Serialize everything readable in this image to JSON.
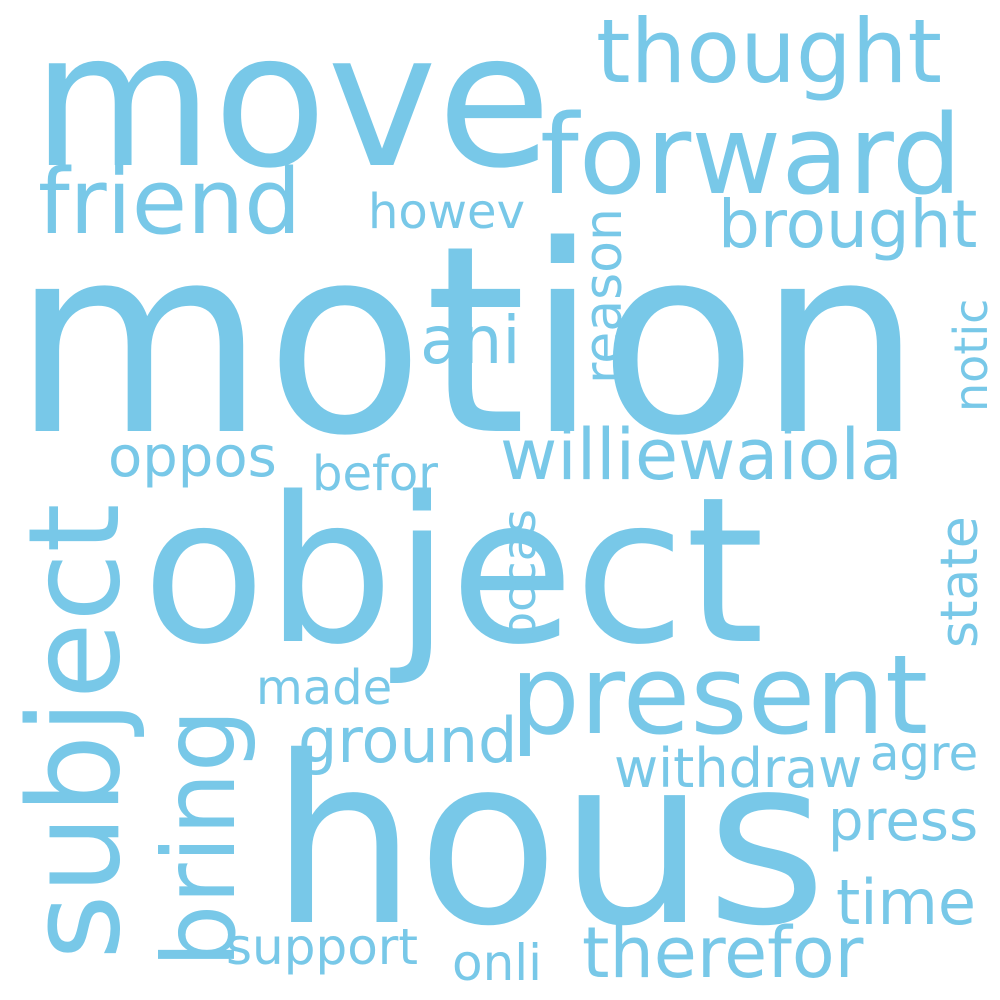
{
  "color": "#78c8e8",
  "words": [
    {
      "name": "word-move",
      "text": "move"
    },
    {
      "name": "word-thought",
      "text": "thought"
    },
    {
      "name": "word-forward",
      "text": "forward"
    },
    {
      "name": "word-friend",
      "text": "friend"
    },
    {
      "name": "word-howev",
      "text": "howev"
    },
    {
      "name": "word-brought",
      "text": "brought"
    },
    {
      "name": "word-motion",
      "text": "motion"
    },
    {
      "name": "word-reason",
      "text": "reason"
    },
    {
      "name": "word-notic",
      "text": "notic"
    },
    {
      "name": "word-ani",
      "text": "ani"
    },
    {
      "name": "word-oppos",
      "text": "oppos"
    },
    {
      "name": "word-williewaiola",
      "text": "williewaiola"
    },
    {
      "name": "word-befor",
      "text": "befor"
    },
    {
      "name": "word-subject",
      "text": "subject"
    },
    {
      "name": "word-object",
      "text": "object"
    },
    {
      "name": "word-occas",
      "text": "occas"
    },
    {
      "name": "word-state",
      "text": "state"
    },
    {
      "name": "word-present",
      "text": "present"
    },
    {
      "name": "word-made",
      "text": "made"
    },
    {
      "name": "word-bring",
      "text": "bring"
    },
    {
      "name": "word-ground",
      "text": "ground"
    },
    {
      "name": "word-agre",
      "text": "agre"
    },
    {
      "name": "word-withdraw",
      "text": "withdraw"
    },
    {
      "name": "word-hous",
      "text": "hous"
    },
    {
      "name": "word-press",
      "text": "press"
    },
    {
      "name": "word-time",
      "text": "time"
    },
    {
      "name": "word-support",
      "text": "support"
    },
    {
      "name": "word-onli",
      "text": "onli"
    },
    {
      "name": "word-therefor",
      "text": "therefor"
    }
  ]
}
